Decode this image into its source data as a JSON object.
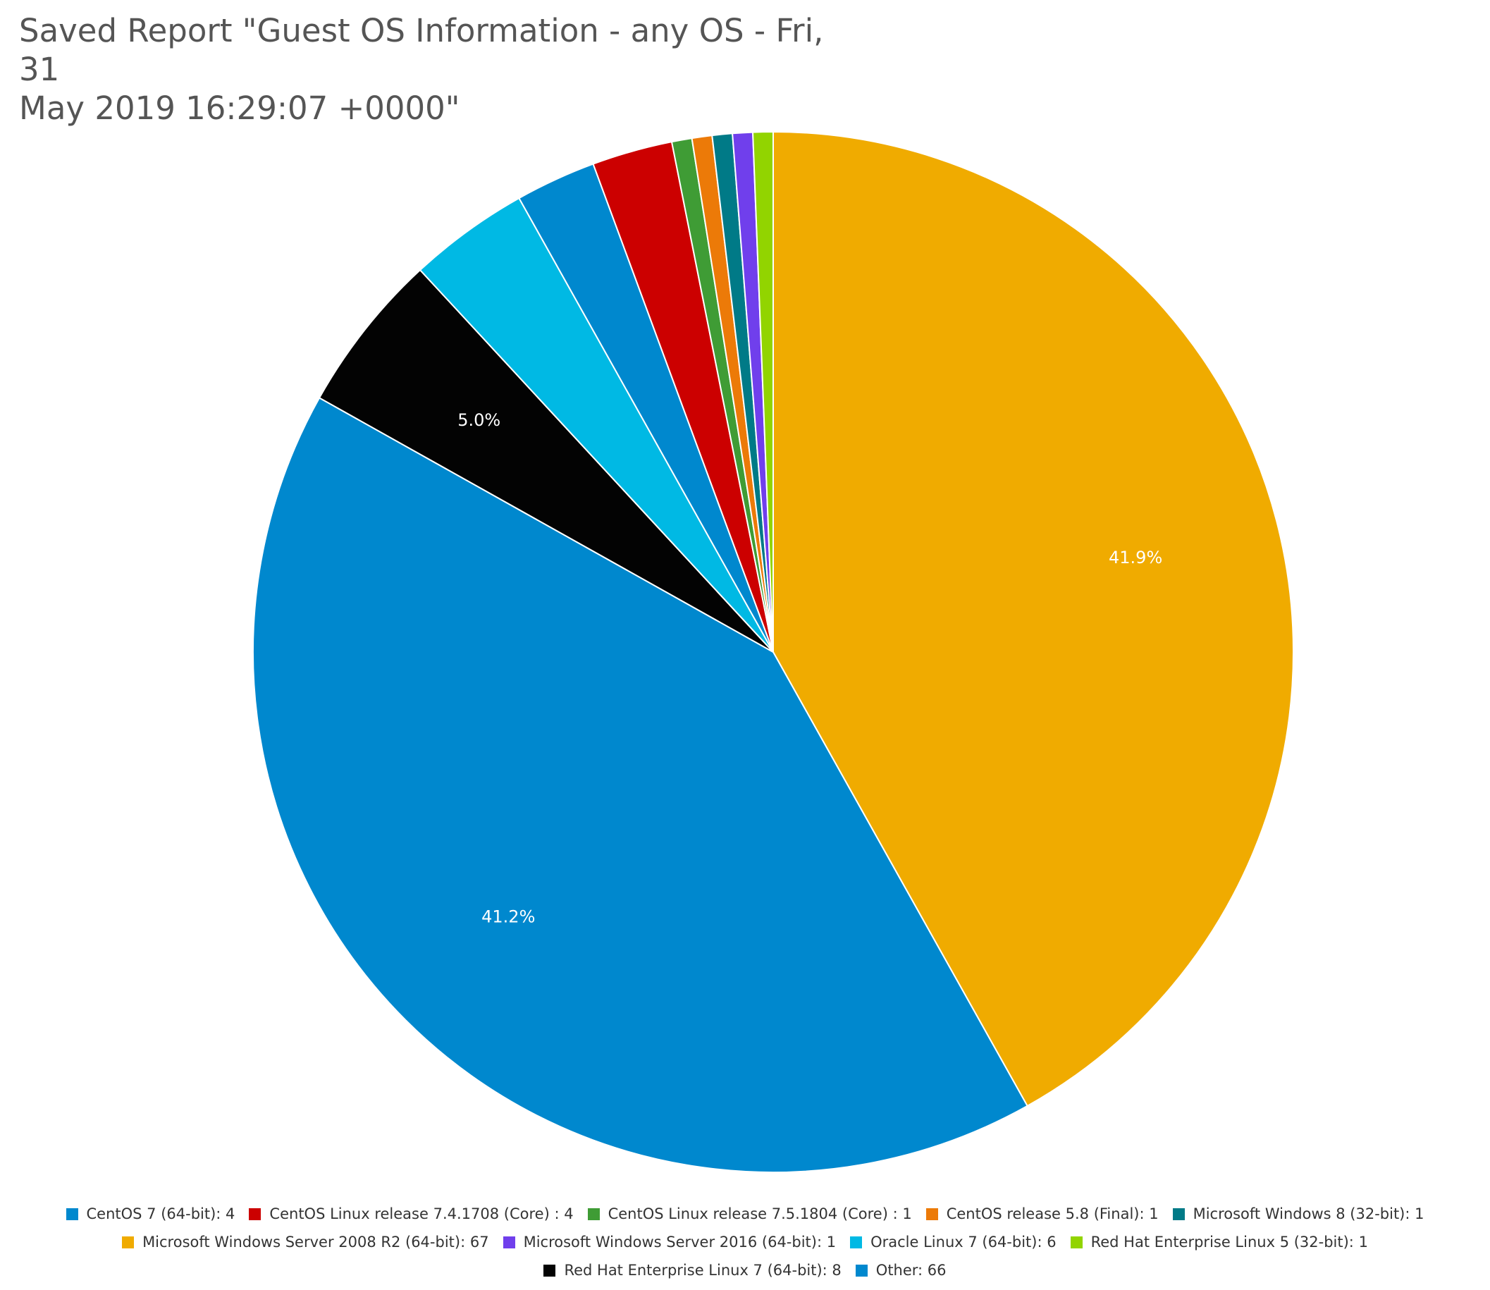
{
  "title": {
    "line1": "Saved Report \"Guest OS Information - any OS - Fri, 31",
    "line2": "May 2019 16:29:07 +0000\""
  },
  "chart_data": {
    "type": "pie",
    "title": "Saved Report \"Guest OS Information - any OS - Fri, 31 May 2019 16:29:07 +0000\"",
    "start_angle_deg": 0,
    "direction": "clockwise",
    "slices": [
      {
        "name": "Microsoft Windows Server 2008 R2 (64-bit)",
        "value": 67,
        "color": "#f0ab00",
        "label": "41.9%",
        "legend": "Microsoft Windows Server 2008 R2 (64-bit): 67"
      },
      {
        "name": "Other",
        "value": 66,
        "color": "#0088ce",
        "label": "41.2%",
        "legend": "Other: 66"
      },
      {
        "name": "Red Hat Enterprise Linux 7 (64-bit)",
        "value": 8,
        "color": "#030303",
        "label": "5.0%",
        "legend": "Red Hat Enterprise Linux 7 (64-bit): 8"
      },
      {
        "name": "Oracle Linux 7 (64-bit)",
        "value": 6,
        "color": "#00b9e4",
        "label": "",
        "legend": "Oracle Linux 7 (64-bit): 6"
      },
      {
        "name": "CentOS 7 (64-bit)",
        "value": 4,
        "color": "#0088ce",
        "label": "",
        "legend": "CentOS 7 (64-bit): 4"
      },
      {
        "name": "CentOS Linux release 7.4.1708 (Core)",
        "value": 4,
        "color": "#cc0000",
        "label": "",
        "legend": "CentOS Linux release 7.4.1708 (Core) : 4"
      },
      {
        "name": "CentOS Linux release 7.5.1804 (Core)",
        "value": 1,
        "color": "#3f9c35",
        "label": "",
        "legend": "CentOS Linux release 7.5.1804 (Core) : 1"
      },
      {
        "name": "CentOS release 5.8 (Final)",
        "value": 1,
        "color": "#ec7a08",
        "label": "",
        "legend": "CentOS release 5.8 (Final): 1"
      },
      {
        "name": "Microsoft Windows 8 (32-bit)",
        "value": 1,
        "color": "#007a87",
        "label": "",
        "legend": "Microsoft Windows 8 (32-bit): 1"
      },
      {
        "name": "Microsoft Windows Server 2016 (64-bit)",
        "value": 1,
        "color": "#703fec",
        "label": "",
        "legend": "Microsoft Windows Server 2016 (64-bit): 1"
      },
      {
        "name": "Red Hat Enterprise Linux 5 (32-bit)",
        "value": 1,
        "color": "#92d400",
        "label": "",
        "legend": "Red Hat Enterprise Linux 5 (32-bit): 1"
      }
    ],
    "legend_rows": [
      [
        {
          "text": "CentOS 7 (64-bit): 4",
          "color": "#0088ce"
        },
        {
          "text": "CentOS Linux release 7.4.1708 (Core) : 4",
          "color": "#cc0000"
        },
        {
          "text": "CentOS Linux release 7.5.1804 (Core) : 1",
          "color": "#3f9c35"
        },
        {
          "text": "CentOS release 5.8 (Final): 1",
          "color": "#ec7a08"
        },
        {
          "text": "Microsoft Windows 8 (32-bit): 1",
          "color": "#007a87"
        }
      ],
      [
        {
          "text": "Microsoft Windows Server 2008 R2 (64-bit): 67",
          "color": "#f0ab00"
        },
        {
          "text": "Microsoft Windows Server 2016 (64-bit): 1",
          "color": "#703fec"
        },
        {
          "text": "Oracle Linux 7 (64-bit): 6",
          "color": "#00b9e4"
        },
        {
          "text": "Red Hat Enterprise Linux 5 (32-bit): 1",
          "color": "#92d400"
        }
      ],
      [
        {
          "text": "Red Hat Enterprise Linux 7 (64-bit): 8",
          "color": "#030303"
        },
        {
          "text": "Other: 66",
          "color": "#0088ce"
        }
      ]
    ],
    "legend_position": "bottom-center"
  }
}
